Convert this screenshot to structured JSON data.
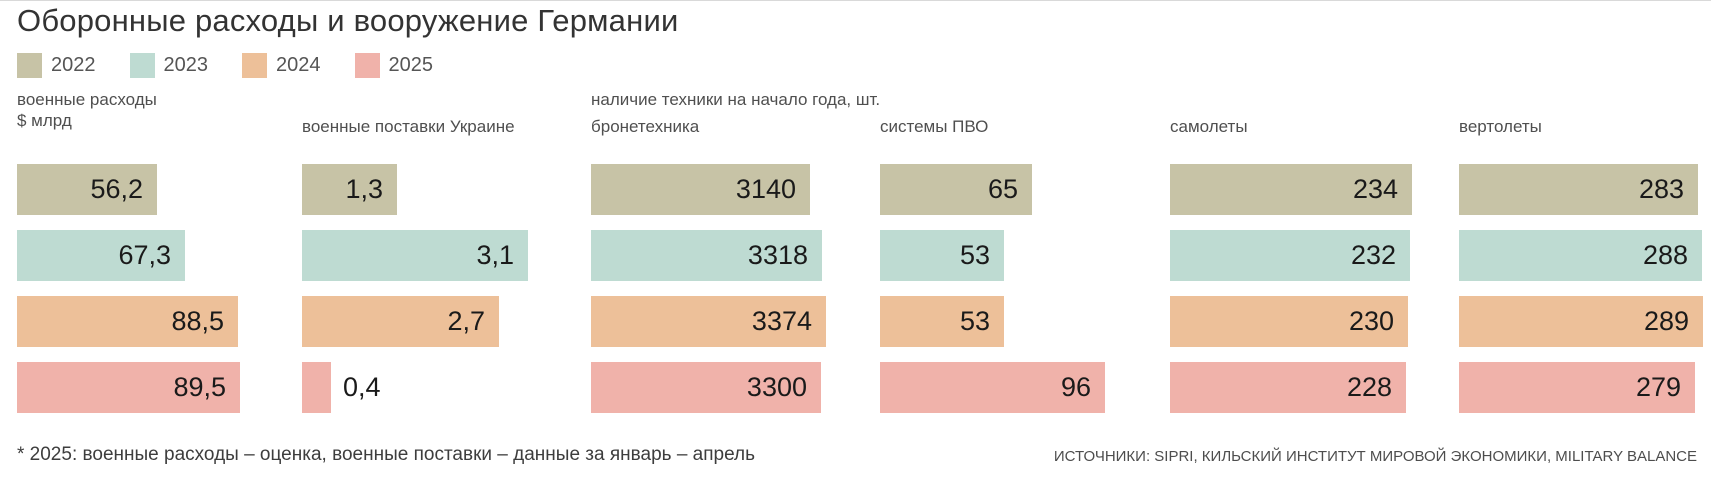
{
  "title": "Оборонные расходы и вооружение Германии",
  "legend": [
    {
      "year": "2022",
      "color": "#c7c3a6"
    },
    {
      "year": "2023",
      "color": "#bedbd2"
    },
    {
      "year": "2024",
      "color": "#edc099"
    },
    {
      "year": "2025",
      "color": "#f0b2aa"
    }
  ],
  "headers": {
    "spending_line1": "военные расходы",
    "spending_line2": "$ млрд",
    "equipment": "наличие техники на начало года, шт."
  },
  "chart_data": {
    "type": "bar",
    "orientation": "horizontal",
    "categories": [
      "2022",
      "2023",
      "2024",
      "2025"
    ],
    "series_colors": [
      "#c7c3a6",
      "#bedbd2",
      "#edc099",
      "#f0b2aa"
    ],
    "groups": [
      {
        "id": "military-spending",
        "label": "",
        "title": "военные расходы, $ млрд",
        "values": [
          56.2,
          67.3,
          88.5,
          89.5
        ],
        "display": [
          "56,2",
          "67,3",
          "88,5",
          "89,5"
        ]
      },
      {
        "id": "supplies-to-ukraine",
        "label": "военные поставки Украине",
        "values": [
          1.3,
          3.1,
          2.7,
          0.4
        ],
        "display": [
          "1,3",
          "3,1",
          "2,7",
          "0,4"
        ]
      },
      {
        "id": "armored-vehicles",
        "label": "бронетехника",
        "values": [
          3140,
          3318,
          3374,
          3300
        ],
        "display": [
          "3140",
          "3318",
          "3374",
          "3300"
        ]
      },
      {
        "id": "air-defense-systems",
        "label": "системы ПВО",
        "values": [
          65,
          53,
          53,
          96
        ],
        "display": [
          "65",
          "53",
          "53",
          "96"
        ]
      },
      {
        "id": "aircraft",
        "label": "самолеты",
        "values": [
          234,
          232,
          230,
          228
        ],
        "display": [
          "234",
          "232",
          "230",
          "228"
        ]
      },
      {
        "id": "helicopters",
        "label": "вертолеты",
        "values": [
          283,
          288,
          289,
          279
        ],
        "display": [
          "283",
          "288",
          "289",
          "279"
        ]
      }
    ]
  },
  "footnote": "* 2025: военные расходы – оценка, военные поставки – данные за январь – апрель",
  "sources": "ИСТОЧНИКИ: SIPRI, КИЛЬСКИЙ ИНСТИТУТ МИРОВОЙ ЭКОНОМИКИ, MILITARY BALANCE"
}
